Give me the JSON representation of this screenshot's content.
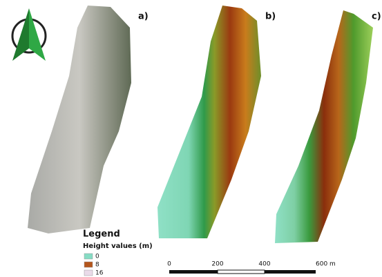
{
  "panels": [
    {
      "label": "a)"
    },
    {
      "label": "b)"
    },
    {
      "label": "c)"
    }
  ],
  "legend": {
    "title": "Legend",
    "subtitle": "Height values (m)",
    "items": [
      {
        "label": "0",
        "color": "#86dcc4"
      },
      {
        "label": "8",
        "color": "#b4561c"
      },
      {
        "label": "16",
        "color": "#eadbe9"
      }
    ]
  },
  "scale_bar": {
    "labels": [
      "0",
      "200",
      "400",
      "600 m"
    ]
  }
}
